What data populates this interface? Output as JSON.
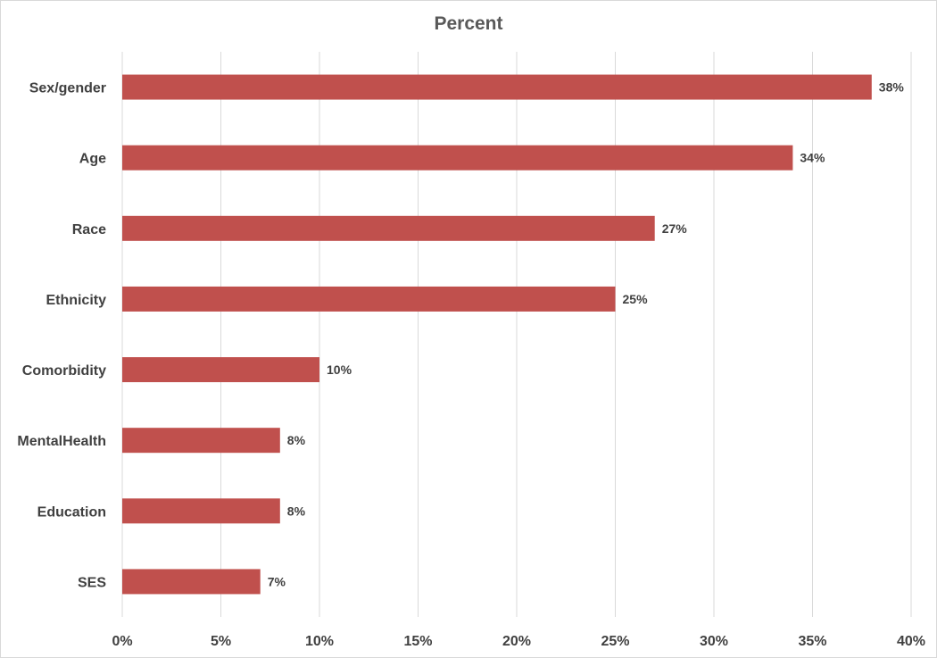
{
  "chart_data": {
    "type": "bar",
    "orientation": "horizontal",
    "title": "Percent",
    "categories": [
      "Sex/gender",
      "Age",
      "Race",
      "Ethnicity",
      "Comorbidity",
      "MentalHealth",
      "Education",
      "SES"
    ],
    "values": [
      38,
      34,
      27,
      25,
      10,
      8,
      8,
      7
    ],
    "data_labels": [
      "38%",
      "34%",
      "27%",
      "25%",
      "10%",
      "8%",
      "8%",
      "7%"
    ],
    "xlabel": "",
    "ylabel": "",
    "xlim": [
      0,
      40
    ],
    "x_ticks": [
      0,
      5,
      10,
      15,
      20,
      25,
      30,
      35,
      40
    ],
    "x_tick_labels": [
      "0%",
      "5%",
      "10%",
      "15%",
      "20%",
      "25%",
      "30%",
      "35%",
      "40%"
    ],
    "grid": "vertical",
    "legend": "none",
    "bar_color": "#c0504d",
    "grid_color": "#d9d9d9"
  }
}
